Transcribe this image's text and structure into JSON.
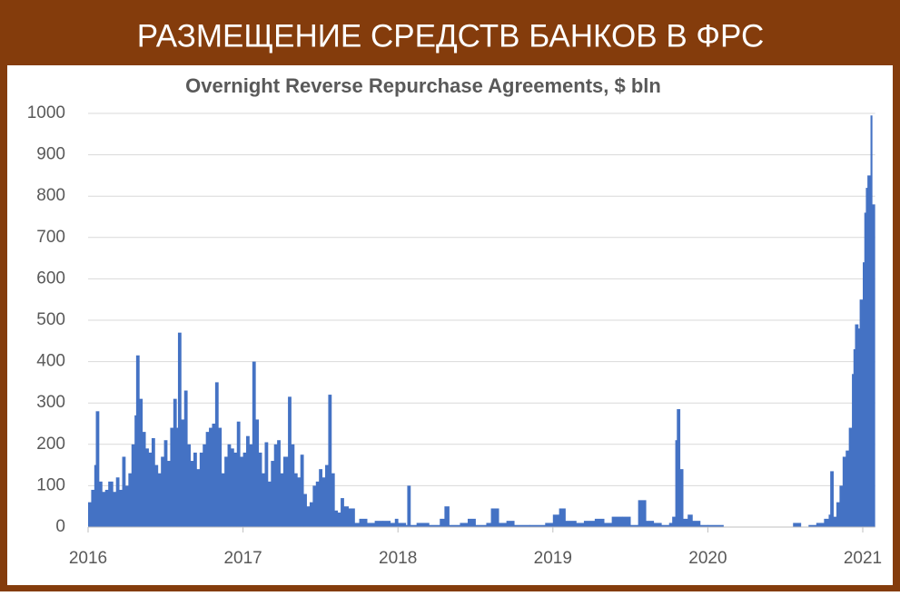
{
  "header": {
    "title": "РАЗМЕЩЕНИЕ СРЕДСТВ БАНКОВ В ФРС"
  },
  "chart_data": {
    "type": "bar",
    "title": "Overnight Reverse Repurchase Agreements, $ bln",
    "color": "#4472c4",
    "grid": true,
    "xlim": [
      2016,
      2021.08
    ],
    "xticks": [
      2016,
      2017,
      2018,
      2019,
      2020,
      2021
    ],
    "ylim": [
      0,
      1000
    ],
    "yticks": [
      0,
      100,
      200,
      300,
      400,
      500,
      600,
      700,
      800,
      900,
      1000
    ],
    "x": [
      2016.0,
      2016.02,
      2016.04,
      2016.05,
      2016.07,
      2016.09,
      2016.11,
      2016.13,
      2016.16,
      2016.18,
      2016.2,
      2016.22,
      2016.24,
      2016.26,
      2016.28,
      2016.3,
      2016.31,
      2016.33,
      2016.35,
      2016.37,
      2016.39,
      2016.41,
      2016.43,
      2016.45,
      2016.47,
      2016.49,
      2016.51,
      2016.53,
      2016.55,
      2016.57,
      2016.58,
      2016.6,
      2016.62,
      2016.64,
      2016.66,
      2016.68,
      2016.7,
      2016.72,
      2016.74,
      2016.76,
      2016.78,
      2016.8,
      2016.82,
      2016.84,
      2016.86,
      2016.88,
      2016.9,
      2016.92,
      2016.94,
      2016.96,
      2016.98,
      2017.0,
      2017.02,
      2017.04,
      2017.06,
      2017.08,
      2017.1,
      2017.12,
      2017.14,
      2017.16,
      2017.18,
      2017.2,
      2017.22,
      2017.24,
      2017.26,
      2017.29,
      2017.31,
      2017.33,
      2017.35,
      2017.37,
      2017.39,
      2017.41,
      2017.43,
      2017.45,
      2017.47,
      2017.49,
      2017.51,
      2017.53,
      2017.55,
      2017.57,
      2017.59,
      2017.61,
      2017.63,
      2017.65,
      2017.68,
      2017.7,
      2017.72,
      2017.75,
      2017.8,
      2017.85,
      2017.9,
      2017.95,
      2017.98,
      2018.0,
      2018.05,
      2018.06,
      2018.08,
      2018.12,
      2018.2,
      2018.27,
      2018.3,
      2018.33,
      2018.4,
      2018.45,
      2018.5,
      2018.57,
      2018.6,
      2018.65,
      2018.7,
      2018.75,
      2018.85,
      2018.95,
      2019.0,
      2019.04,
      2019.08,
      2019.15,
      2019.2,
      2019.27,
      2019.33,
      2019.38,
      2019.45,
      2019.5,
      2019.55,
      2019.6,
      2019.65,
      2019.7,
      2019.75,
      2019.77,
      2019.79,
      2019.8,
      2019.82,
      2019.84,
      2019.87,
      2019.9,
      2019.95,
      2020.0,
      2020.1,
      2020.3,
      2020.55,
      2020.6,
      2020.65,
      2020.7,
      2020.75,
      2020.78,
      2020.79,
      2020.81,
      2020.83,
      2020.85,
      2020.87,
      2020.89,
      2020.91,
      2020.93,
      2020.94,
      2020.95,
      2020.97,
      2020.98,
      2021.0,
      2021.01,
      2021.02,
      2021.03,
      2021.05,
      2021.06
    ],
    "values": [
      60,
      90,
      150,
      280,
      110,
      85,
      90,
      110,
      85,
      120,
      90,
      170,
      100,
      130,
      200,
      270,
      415,
      310,
      230,
      190,
      180,
      215,
      150,
      130,
      170,
      210,
      160,
      240,
      310,
      240,
      470,
      260,
      330,
      200,
      160,
      180,
      140,
      180,
      200,
      230,
      240,
      250,
      350,
      240,
      130,
      170,
      200,
      190,
      180,
      255,
      170,
      180,
      220,
      200,
      400,
      260,
      180,
      130,
      205,
      110,
      160,
      200,
      210,
      130,
      170,
      315,
      200,
      130,
      120,
      175,
      80,
      50,
      60,
      100,
      110,
      140,
      120,
      150,
      320,
      130,
      40,
      35,
      70,
      50,
      45,
      45,
      10,
      20,
      10,
      15,
      15,
      10,
      20,
      10,
      5,
      100,
      5,
      10,
      5,
      20,
      50,
      5,
      10,
      20,
      5,
      10,
      45,
      10,
      15,
      5,
      5,
      10,
      30,
      45,
      15,
      10,
      15,
      20,
      10,
      25,
      25,
      5,
      65,
      15,
      10,
      5,
      10,
      25,
      210,
      285,
      140,
      20,
      30,
      15,
      5,
      5,
      0,
      0,
      10,
      0,
      5,
      10,
      20,
      30,
      135,
      25,
      60,
      100,
      170,
      185,
      240,
      370,
      430,
      490,
      480,
      550,
      640,
      760,
      820,
      850,
      995,
      780
    ]
  }
}
